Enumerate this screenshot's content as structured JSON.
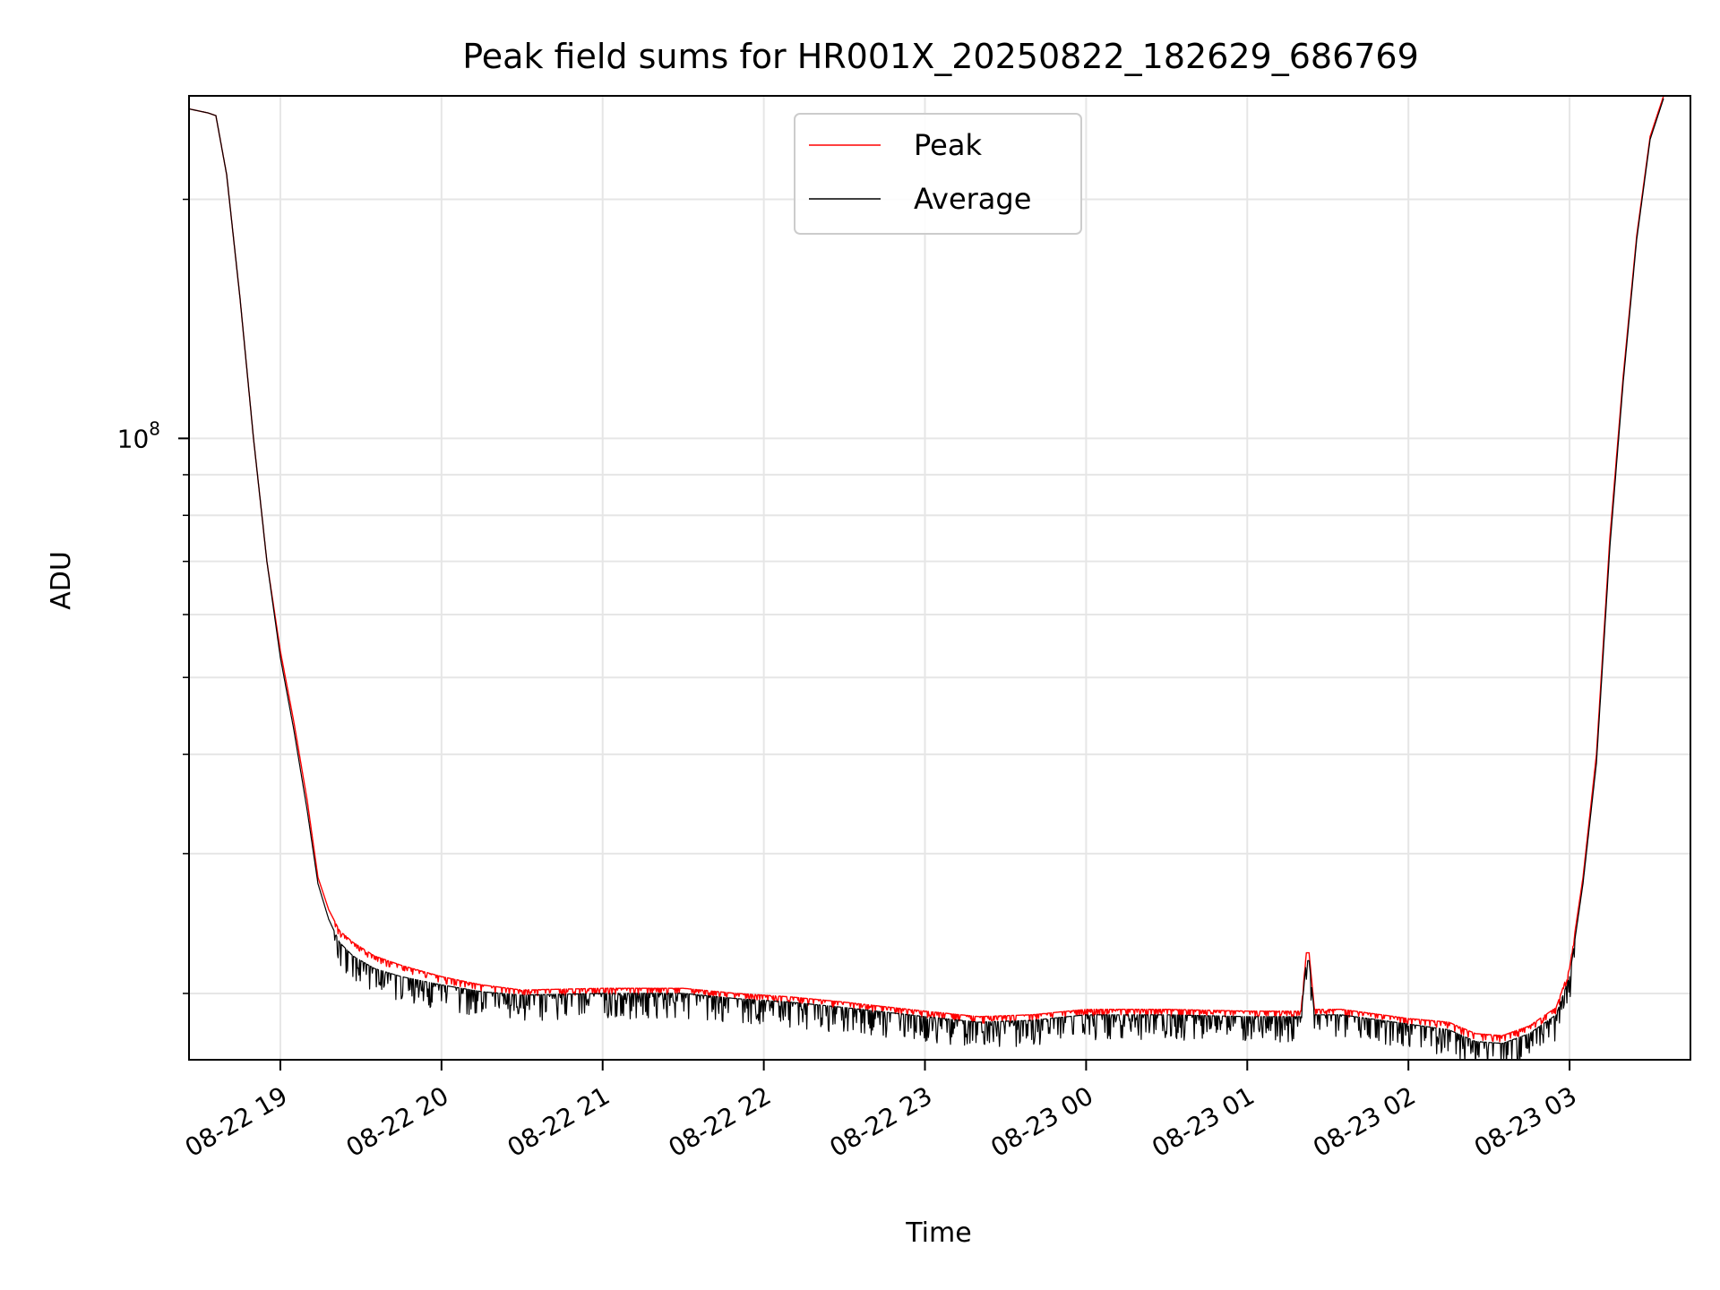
{
  "chart_data": {
    "type": "line",
    "title": "Peak field sums for HR001X_20250822_182629_686769",
    "xlabel": "Time",
    "ylabel": "ADU",
    "y_scale": "log",
    "ylim": [
      16500000,
      270000000
    ],
    "xlim": [
      "2025-08-22 18:26",
      "2025-08-23 03:45"
    ],
    "x_ticks": [
      "08-22 19",
      "08-22 20",
      "08-22 21",
      "08-22 22",
      "08-22 23",
      "08-23 00",
      "08-23 01",
      "08-23 02",
      "08-23 03"
    ],
    "x_tick_times": [
      "2025-08-22 19:00",
      "2025-08-22 20:00",
      "2025-08-22 21:00",
      "2025-08-22 22:00",
      "2025-08-22 23:00",
      "2025-08-23 00:00",
      "2025-08-23 01:00",
      "2025-08-23 02:00",
      "2025-08-23 03:00"
    ],
    "y_tick_label": "10",
    "y_tick_exponent": "8",
    "grid": true,
    "legend_position": "top-center",
    "series": [
      {
        "name": "Peak",
        "color": "#ff0000",
        "x": [
          "2025-08-22 18:26",
          "2025-08-22 18:33",
          "2025-08-22 18:36",
          "2025-08-22 18:40",
          "2025-08-22 18:45",
          "2025-08-22 18:50",
          "2025-08-22 18:55",
          "2025-08-22 19:00",
          "2025-08-22 19:05",
          "2025-08-22 19:10",
          "2025-08-22 19:14",
          "2025-08-22 19:18",
          "2025-08-22 19:22",
          "2025-08-22 19:27",
          "2025-08-22 19:35",
          "2025-08-22 19:45",
          "2025-08-22 20:00",
          "2025-08-22 20:15",
          "2025-08-22 20:30",
          "2025-08-22 21:00",
          "2025-08-22 21:30",
          "2025-08-22 21:50",
          "2025-08-22 22:00",
          "2025-08-22 22:10",
          "2025-08-22 22:30",
          "2025-08-22 23:00",
          "2025-08-22 23:20",
          "2025-08-22 23:40",
          "2025-08-23 00:00",
          "2025-08-23 00:30",
          "2025-08-23 01:00",
          "2025-08-23 01:20",
          "2025-08-23 01:22",
          "2025-08-23 01:23",
          "2025-08-23 01:25",
          "2025-08-23 01:35",
          "2025-08-23 02:00",
          "2025-08-23 02:15",
          "2025-08-23 02:25",
          "2025-08-23 02:35",
          "2025-08-23 02:45",
          "2025-08-23 02:55",
          "2025-08-23 03:00",
          "2025-08-23 03:05",
          "2025-08-23 03:10",
          "2025-08-23 03:15",
          "2025-08-23 03:20",
          "2025-08-23 03:25",
          "2025-08-23 03:30",
          "2025-08-23 03:35"
        ],
        "y": [
          260000000,
          257000000,
          255000000,
          215000000,
          150000000,
          100000000,
          70000000,
          54000000,
          44000000,
          35000000,
          28000000,
          25500000,
          24000000,
          23200000,
          22300000,
          21700000,
          21000000,
          20500000,
          20200000,
          20300000,
          20300000,
          20000000,
          19900000,
          19800000,
          19500000,
          19000000,
          18700000,
          18800000,
          19100000,
          19100000,
          19000000,
          19000000,
          22500000,
          22500000,
          19100000,
          19100000,
          18600000,
          18400000,
          17800000,
          17700000,
          18200000,
          19200000,
          21500000,
          28000000,
          40000000,
          75000000,
          120000000,
          180000000,
          240000000,
          270000000
        ]
      },
      {
        "name": "Average",
        "color": "#000000",
        "x": [
          "2025-08-22 18:26",
          "2025-08-22 18:33",
          "2025-08-22 18:36",
          "2025-08-22 18:40",
          "2025-08-22 18:45",
          "2025-08-22 18:50",
          "2025-08-22 18:55",
          "2025-08-22 19:00",
          "2025-08-22 19:05",
          "2025-08-22 19:10",
          "2025-08-22 19:14",
          "2025-08-22 19:18",
          "2025-08-22 19:22",
          "2025-08-22 19:27",
          "2025-08-22 19:35",
          "2025-08-22 19:45",
          "2025-08-22 20:00",
          "2025-08-22 20:15",
          "2025-08-22 20:30",
          "2025-08-22 21:00",
          "2025-08-22 21:30",
          "2025-08-22 21:50",
          "2025-08-22 22:00",
          "2025-08-22 22:10",
          "2025-08-22 22:30",
          "2025-08-22 23:00",
          "2025-08-22 23:20",
          "2025-08-22 23:40",
          "2025-08-23 00:00",
          "2025-08-23 00:30",
          "2025-08-23 01:00",
          "2025-08-23 01:20",
          "2025-08-23 01:22",
          "2025-08-23 01:23",
          "2025-08-23 01:25",
          "2025-08-23 01:35",
          "2025-08-23 02:00",
          "2025-08-23 02:15",
          "2025-08-23 02:25",
          "2025-08-23 02:35",
          "2025-08-23 02:45",
          "2025-08-23 02:55",
          "2025-08-23 03:00",
          "2025-08-23 03:05",
          "2025-08-23 03:10",
          "2025-08-23 03:15",
          "2025-08-23 03:20",
          "2025-08-23 03:25",
          "2025-08-23 03:30",
          "2025-08-23 03:35"
        ],
        "y": [
          260000000,
          257000000,
          255000000,
          215000000,
          150000000,
          100000000,
          70000000,
          53000000,
          43000000,
          34000000,
          27500000,
          24800000,
          23200000,
          22300000,
          21500000,
          21000000,
          20500000,
          20100000,
          19900000,
          20000000,
          20000000,
          19700000,
          19600000,
          19500000,
          19200000,
          18700000,
          18400000,
          18500000,
          18800000,
          18800000,
          18700000,
          18700000,
          22000000,
          22000000,
          18800000,
          18800000,
          18300000,
          18000000,
          17400000,
          17300000,
          17800000,
          18800000,
          21000000,
          27500000,
          39000000,
          73000000,
          118000000,
          178000000,
          238000000,
          268000000
        ]
      }
    ]
  }
}
